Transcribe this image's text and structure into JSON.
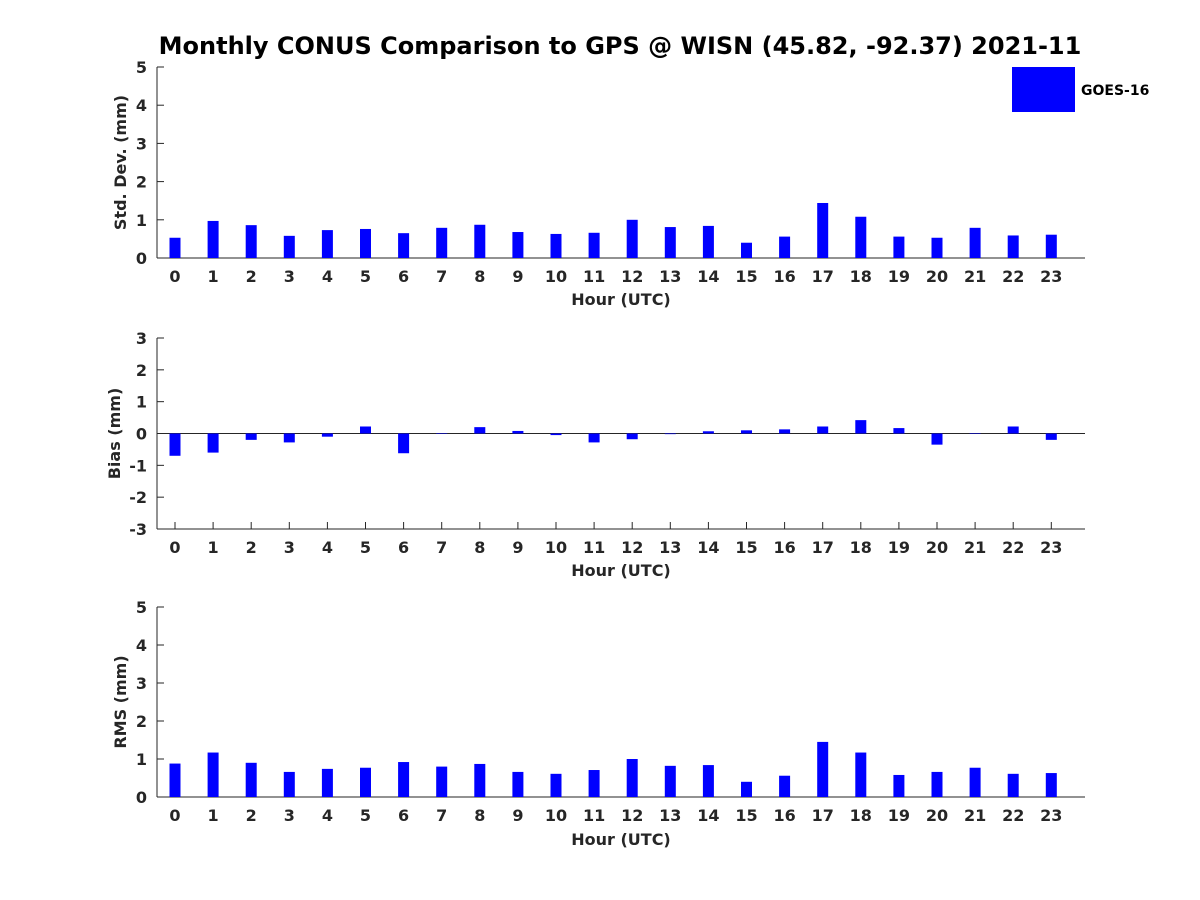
{
  "chart_data": {
    "title": "Monthly CONUS Comparison to GPS @ WISN (45.82, -92.37) 2021-11",
    "legend": {
      "label": "GOES-16",
      "color": "#0000ff",
      "position": "top-right"
    },
    "panels": [
      {
        "type": "bar",
        "xlabel": "Hour (UTC)",
        "ylabel": "Std. Dev. (mm)",
        "ylim": [
          0,
          5
        ],
        "yticks": [
          0,
          1,
          2,
          3,
          4,
          5
        ],
        "categories": [
          "0",
          "1",
          "2",
          "3",
          "4",
          "5",
          "6",
          "7",
          "8",
          "9",
          "10",
          "11",
          "12",
          "13",
          "14",
          "15",
          "16",
          "17",
          "18",
          "19",
          "20",
          "21",
          "22",
          "23"
        ],
        "values": [
          0.53,
          0.97,
          0.86,
          0.58,
          0.73,
          0.76,
          0.65,
          0.79,
          0.87,
          0.68,
          0.63,
          0.66,
          1.0,
          0.81,
          0.84,
          0.4,
          0.56,
          1.44,
          1.08,
          0.56,
          0.53,
          0.79,
          0.59,
          0.61
        ]
      },
      {
        "type": "bar",
        "xlabel": "Hour (UTC)",
        "ylabel": "Bias (mm)",
        "ylim": [
          -3,
          3
        ],
        "yticks": [
          -3,
          -2,
          -1,
          0,
          1,
          2,
          3
        ],
        "categories": [
          "0",
          "1",
          "2",
          "3",
          "4",
          "5",
          "6",
          "7",
          "8",
          "9",
          "10",
          "11",
          "12",
          "13",
          "14",
          "15",
          "16",
          "17",
          "18",
          "19",
          "20",
          "21",
          "22",
          "23"
        ],
        "values": [
          -0.7,
          -0.6,
          -0.2,
          -0.28,
          -0.1,
          0.22,
          -0.62,
          0.0,
          0.2,
          0.08,
          -0.05,
          -0.28,
          -0.18,
          -0.02,
          0.07,
          0.1,
          0.13,
          0.22,
          0.42,
          0.17,
          -0.35,
          0.0,
          0.22,
          -0.2
        ]
      },
      {
        "type": "bar",
        "xlabel": "Hour (UTC)",
        "ylabel": "RMS (mm)",
        "ylim": [
          0,
          5
        ],
        "yticks": [
          0,
          1,
          2,
          3,
          4,
          5
        ],
        "categories": [
          "0",
          "1",
          "2",
          "3",
          "4",
          "5",
          "6",
          "7",
          "8",
          "9",
          "10",
          "11",
          "12",
          "13",
          "14",
          "15",
          "16",
          "17",
          "18",
          "19",
          "20",
          "21",
          "22",
          "23"
        ],
        "values": [
          0.88,
          1.17,
          0.9,
          0.66,
          0.74,
          0.77,
          0.92,
          0.8,
          0.87,
          0.66,
          0.61,
          0.71,
          1.0,
          0.82,
          0.84,
          0.4,
          0.56,
          1.45,
          1.17,
          0.58,
          0.66,
          0.77,
          0.61,
          0.63
        ]
      }
    ]
  }
}
